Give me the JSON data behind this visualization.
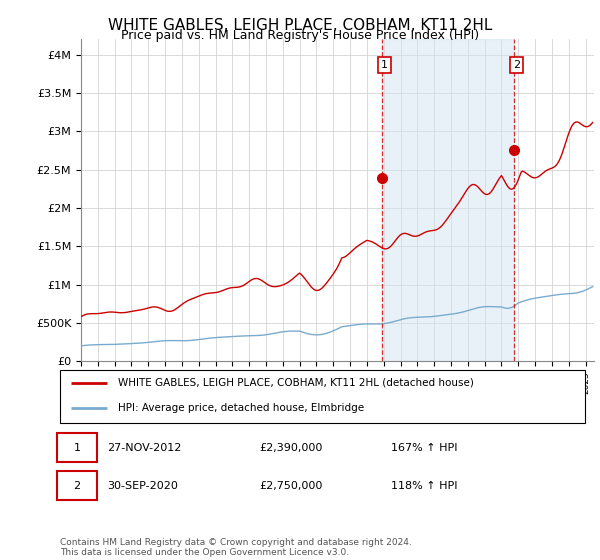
{
  "title": "WHITE GABLES, LEIGH PLACE, COBHAM, KT11 2HL",
  "subtitle": "Price paid vs. HM Land Registry's House Price Index (HPI)",
  "title_fontsize": 11,
  "subtitle_fontsize": 9,
  "ylim": [
    0,
    4200000
  ],
  "yticks": [
    0,
    500000,
    1000000,
    1500000,
    2000000,
    2500000,
    3000000,
    3500000,
    4000000
  ],
  "ytick_labels": [
    "£0",
    "£500K",
    "£1M",
    "£1.5M",
    "£2M",
    "£2.5M",
    "£3M",
    "£3.5M",
    "£4M"
  ],
  "red_line_color": "#cc0000",
  "blue_line_color": "#7aabcf",
  "point1_x": 2012.9,
  "point1_y": 2390000,
  "point1_label": "1",
  "point2_x": 2020.75,
  "point2_y": 2750000,
  "point2_label": "2",
  "legend_red": "WHITE GABLES, LEIGH PLACE, COBHAM, KT11 2HL (detached house)",
  "legend_blue": "HPI: Average price, detached house, Elmbridge",
  "table_row1": [
    "1",
    "27-NOV-2012",
    "£2,390,000",
    "167% ↑ HPI"
  ],
  "table_row2": [
    "2",
    "30-SEP-2020",
    "£2,750,000",
    "118% ↑ HPI"
  ],
  "footnote": "Contains HM Land Registry data © Crown copyright and database right 2024.\nThis data is licensed under the Open Government Licence v3.0.",
  "xmin": 1995,
  "xmax": 2025.5,
  "shade_color": "#d0e4f0",
  "shade_alpha": 0.5
}
